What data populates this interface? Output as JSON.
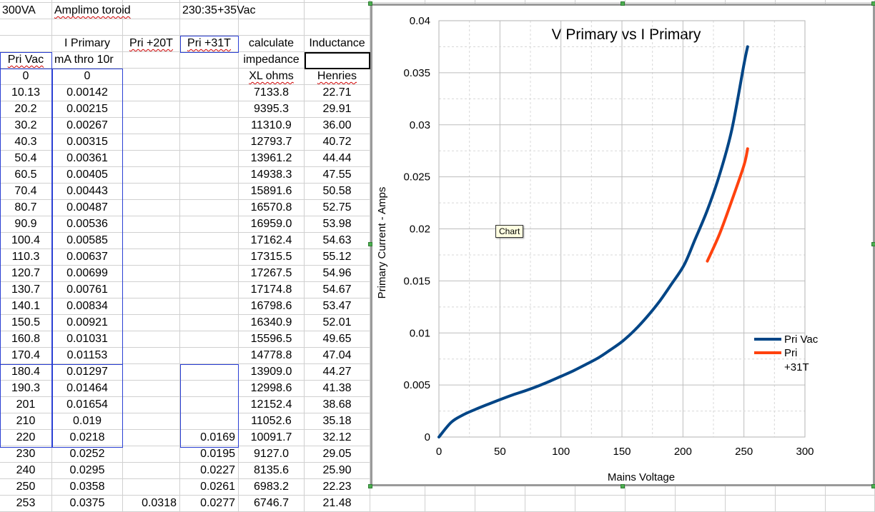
{
  "header": {
    "a1": "300VA",
    "b1": "Amplimo toroid",
    "d1": "230:35+35Vac",
    "b3": "I Primary",
    "c3": "Pri +20T",
    "d3": "Pri +31T",
    "e3": "calculate",
    "f3": "Inductance",
    "a4": "Pri Vac",
    "b4": "mA thro 10r",
    "e4": "impedance",
    "e5": "XL ohms",
    "f5": "Henries"
  },
  "rows": [
    {
      "a": "0",
      "b": "0",
      "c": "",
      "d": "",
      "e": "",
      "f": ""
    },
    {
      "a": "10.13",
      "b": "0.00142",
      "c": "",
      "d": "",
      "e": "7133.8",
      "f": "22.71"
    },
    {
      "a": "20.2",
      "b": "0.00215",
      "c": "",
      "d": "",
      "e": "9395.3",
      "f": "29.91"
    },
    {
      "a": "30.2",
      "b": "0.00267",
      "c": "",
      "d": "",
      "e": "11310.9",
      "f": "36.00"
    },
    {
      "a": "40.3",
      "b": "0.00315",
      "c": "",
      "d": "",
      "e": "12793.7",
      "f": "40.72"
    },
    {
      "a": "50.4",
      "b": "0.00361",
      "c": "",
      "d": "",
      "e": "13961.2",
      "f": "44.44"
    },
    {
      "a": "60.5",
      "b": "0.00405",
      "c": "",
      "d": "",
      "e": "14938.3",
      "f": "47.55"
    },
    {
      "a": "70.4",
      "b": "0.00443",
      "c": "",
      "d": "",
      "e": "15891.6",
      "f": "50.58"
    },
    {
      "a": "80.7",
      "b": "0.00487",
      "c": "",
      "d": "",
      "e": "16570.8",
      "f": "52.75"
    },
    {
      "a": "90.9",
      "b": "0.00536",
      "c": "",
      "d": "",
      "e": "16959.0",
      "f": "53.98"
    },
    {
      "a": "100.4",
      "b": "0.00585",
      "c": "",
      "d": "",
      "e": "17162.4",
      "f": "54.63"
    },
    {
      "a": "110.3",
      "b": "0.00637",
      "c": "",
      "d": "",
      "e": "17315.5",
      "f": "55.12"
    },
    {
      "a": "120.7",
      "b": "0.00699",
      "c": "",
      "d": "",
      "e": "17267.5",
      "f": "54.96"
    },
    {
      "a": "130.7",
      "b": "0.00761",
      "c": "",
      "d": "",
      "e": "17174.8",
      "f": "54.67"
    },
    {
      "a": "140.1",
      "b": "0.00834",
      "c": "",
      "d": "",
      "e": "16798.6",
      "f": "53.47"
    },
    {
      "a": "150.5",
      "b": "0.00921",
      "c": "",
      "d": "",
      "e": "16340.9",
      "f": "52.01"
    },
    {
      "a": "160.8",
      "b": "0.01031",
      "c": "",
      "d": "",
      "e": "15596.5",
      "f": "49.65"
    },
    {
      "a": "170.4",
      "b": "0.01153",
      "c": "",
      "d": "",
      "e": "14778.8",
      "f": "47.04"
    },
    {
      "a": "180.4",
      "b": "0.01297",
      "c": "",
      "d": "",
      "e": "13909.0",
      "f": "44.27"
    },
    {
      "a": "190.3",
      "b": "0.01464",
      "c": "",
      "d": "",
      "e": "12998.6",
      "f": "41.38"
    },
    {
      "a": "201",
      "b": "0.01654",
      "c": "",
      "d": "",
      "e": "12152.4",
      "f": "38.68"
    },
    {
      "a": "210",
      "b": "0.019",
      "c": "",
      "d": "",
      "e": "11052.6",
      "f": "35.18"
    },
    {
      "a": "220",
      "b": "0.0218",
      "c": "",
      "d": "0.0169",
      "e": "10091.7",
      "f": "32.12"
    },
    {
      "a": "230",
      "b": "0.0252",
      "c": "",
      "d": "0.0195",
      "e": "9127.0",
      "f": "29.05"
    },
    {
      "a": "240",
      "b": "0.0295",
      "c": "",
      "d": "0.0227",
      "e": "8135.6",
      "f": "25.90"
    },
    {
      "a": "250",
      "b": "0.0358",
      "c": "",
      "d": "0.0261",
      "e": "6983.2",
      "f": "22.23"
    },
    {
      "a": "253",
      "b": "0.0375",
      "c": "0.0318",
      "d": "0.0277",
      "e": "6746.7",
      "f": "21.48"
    }
  ],
  "tooltip": "Chart",
  "chart_data": {
    "type": "line",
    "title": "V Primary vs I Primary",
    "xlabel": "Mains Voltage",
    "ylabel": "Primary Current - Amps",
    "xlim": [
      0,
      300
    ],
    "ylim": [
      0,
      0.04
    ],
    "x_ticks": [
      "0",
      "50",
      "100",
      "150",
      "200",
      "250",
      "300"
    ],
    "y_ticks": [
      "0",
      "0.005",
      "0.01",
      "0.015",
      "0.02",
      "0.025",
      "0.03",
      "0.035",
      "0.04"
    ],
    "grid": true,
    "legend_position": "right",
    "series": [
      {
        "name": "Pri Vac",
        "color": "#004586",
        "x": [
          0,
          10.13,
          20.2,
          30.2,
          40.3,
          50.4,
          60.5,
          70.4,
          80.7,
          90.9,
          100.4,
          110.3,
          120.7,
          130.7,
          140.1,
          150.5,
          160.8,
          170.4,
          180.4,
          190.3,
          201,
          210,
          220,
          230,
          240,
          250,
          253
        ],
        "y": [
          0,
          0.00142,
          0.00215,
          0.00267,
          0.00315,
          0.00361,
          0.00405,
          0.00443,
          0.00487,
          0.00536,
          0.00585,
          0.00637,
          0.00699,
          0.00761,
          0.00834,
          0.00921,
          0.01031,
          0.01153,
          0.01297,
          0.01464,
          0.01654,
          0.019,
          0.0218,
          0.0252,
          0.0295,
          0.0358,
          0.0375
        ]
      },
      {
        "name": "Pri +31T",
        "color": "#ff420e",
        "x": [
          220,
          230,
          240,
          250,
          253
        ],
        "y": [
          0.0169,
          0.0195,
          0.0227,
          0.0261,
          0.0277
        ]
      }
    ]
  }
}
